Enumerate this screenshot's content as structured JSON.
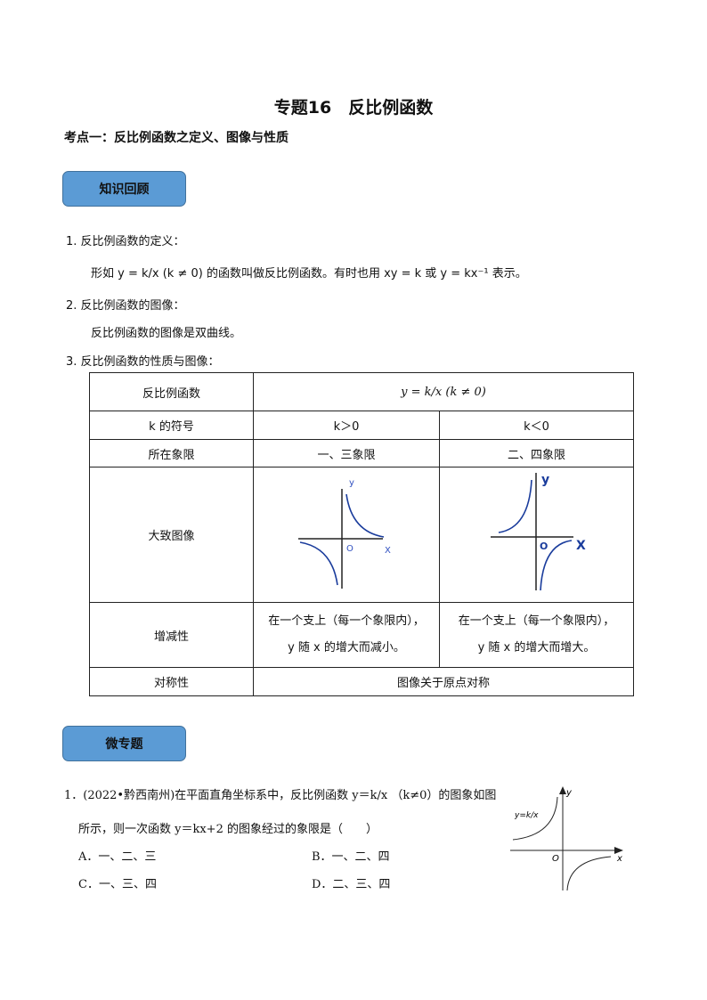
{
  "title": "专题16　反比例函数",
  "subtitle": "考点一：反比例函数之定义、图像与性质",
  "badge1": "知识回顾",
  "badge2": "微专题",
  "items": [
    {
      "num": "1.",
      "head": "反比例函数的定义：",
      "body": "形如 y = k/x (k ≠ 0) 的函数叫做反比例函数。有时也用 xy = k 或 y = kx⁻¹ 表示。"
    },
    {
      "num": "2.",
      "head": "反比例函数的图像：",
      "body": "反比例函数的图像是双曲线。"
    },
    {
      "num": "3.",
      "head": "反比例函数的性质与图像："
    }
  ],
  "table": {
    "r1": [
      "反比例函数",
      "y = k/x (k ≠ 0)"
    ],
    "r2": [
      "k 的符号",
      "k＞0",
      "k＜0"
    ],
    "r3": [
      "所在象限",
      "一、三象限",
      "二、四象限"
    ],
    "r4": [
      "大致图像"
    ],
    "r5": [
      "增减性",
      "在一个支上（每一个象限内），",
      "y 随 x 的增大而减小。",
      "在一个支上（每一个象限内），",
      "y 随 x 的增大而增大。"
    ],
    "r6": [
      "对称性",
      "图像关于原点对称"
    ],
    "graph1": {
      "y": "y",
      "x": "X",
      "o": "O"
    },
    "graph2": {
      "y": "y",
      "x": "X",
      "o": "O"
    }
  },
  "question": {
    "line1": "1．(2022•黔西南州)在平面直角坐标系中，反比例函数 y＝k/x （k≠0）的图象如图",
    "line2": "所示，则一次函数 y＝kx+2 的图象经过的象限是（　　）",
    "options": [
      "A．一、二、三",
      "B．一、二、四",
      "C．一、三、四",
      "D．二、三、四"
    ],
    "graph": {
      "label": "y=k/x",
      "y": "y",
      "x": "x",
      "o": "O"
    }
  }
}
